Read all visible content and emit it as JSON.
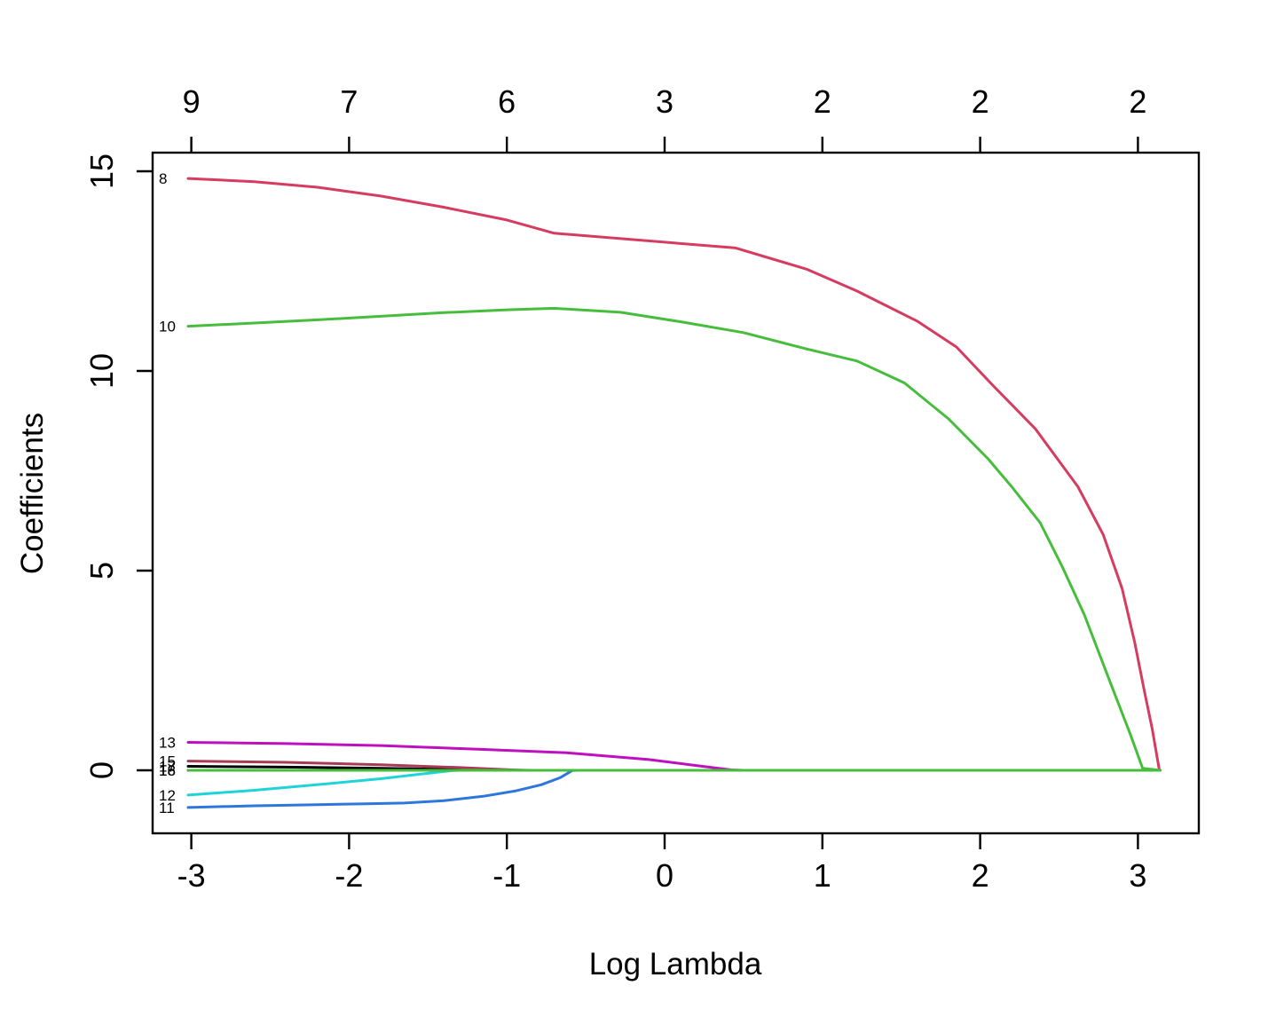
{
  "chart_data": {
    "type": "line",
    "title": "",
    "xlabel": "Log Lambda",
    "ylabel": "Coefficients",
    "x_ticks": [
      -3,
      -2,
      -1,
      0,
      1,
      2,
      3
    ],
    "y_ticks": [
      0,
      5,
      10,
      15
    ],
    "top_axis": {
      "description": "number of nonzero coefficients at each lambda",
      "tick_x": [
        -3,
        -2,
        -1,
        0,
        1,
        2,
        3
      ],
      "labels": [
        "9",
        "7",
        "6",
        "3",
        "2",
        "2",
        "2"
      ]
    },
    "xlim": [
      -3.25,
      3.39
    ],
    "ylim": [
      -1.58,
      15.47
    ],
    "grid": false,
    "legend": "none; each curve labeled at its left end with variable number",
    "series": [
      {
        "label": "18",
        "color": "#000000",
        "points": [
          [
            -3.02,
            0
          ],
          [
            3.14,
            0
          ]
        ]
      },
      {
        "label": "17",
        "color": "#000000",
        "points": [
          [
            -3.02,
            0.1
          ],
          [
            -2.4,
            0.08
          ],
          [
            -1.8,
            0.05
          ],
          [
            -1.4,
            0.025
          ],
          [
            -1.0,
            0.002
          ],
          [
            -0.95,
            0
          ],
          [
            3.14,
            0
          ]
        ]
      },
      {
        "label": "15",
        "color": "#a83a53",
        "points": [
          [
            -3.02,
            0.23
          ],
          [
            -2.4,
            0.2
          ],
          [
            -1.8,
            0.14
          ],
          [
            -1.3,
            0.07
          ],
          [
            -0.97,
            0.01
          ],
          [
            -0.85,
            0
          ],
          [
            3.14,
            0
          ]
        ]
      },
      {
        "label": "13",
        "color": "#bf10bf",
        "points": [
          [
            -3.02,
            0.7
          ],
          [
            -2.4,
            0.67
          ],
          [
            -1.8,
            0.62
          ],
          [
            -1.2,
            0.53
          ],
          [
            -0.62,
            0.44
          ],
          [
            -0.1,
            0.27
          ],
          [
            0.2,
            0.12
          ],
          [
            0.42,
            0.01
          ],
          [
            0.5,
            0
          ],
          [
            3.14,
            0
          ]
        ]
      },
      {
        "label": "12",
        "color": "#1ed4d8",
        "points": [
          [
            -3.02,
            -0.62
          ],
          [
            -2.6,
            -0.5
          ],
          [
            -2.12,
            -0.33
          ],
          [
            -1.8,
            -0.21
          ],
          [
            -1.6,
            -0.12
          ],
          [
            -1.34,
            -0.005
          ],
          [
            -1.3,
            0
          ],
          [
            3.14,
            0
          ]
        ]
      },
      {
        "label": "11",
        "color": "#2d77dc",
        "points": [
          [
            -3.02,
            -0.93
          ],
          [
            -2.6,
            -0.89
          ],
          [
            -2.2,
            -0.86
          ],
          [
            -1.9,
            -0.84
          ],
          [
            -1.65,
            -0.82
          ],
          [
            -1.4,
            -0.76
          ],
          [
            -1.15,
            -0.65
          ],
          [
            -0.95,
            -0.52
          ],
          [
            -0.78,
            -0.36
          ],
          [
            -0.66,
            -0.18
          ],
          [
            -0.585,
            -0.005
          ],
          [
            -0.55,
            0
          ],
          [
            3.14,
            0
          ]
        ]
      },
      {
        "label": "8",
        "color": "#d63b60",
        "points": [
          [
            -3.02,
            14.82
          ],
          [
            -2.6,
            14.74
          ],
          [
            -2.2,
            14.6
          ],
          [
            -1.8,
            14.38
          ],
          [
            -1.4,
            14.1
          ],
          [
            -1.0,
            13.78
          ],
          [
            -0.7,
            13.45
          ],
          [
            0.45,
            13.08
          ],
          [
            0.9,
            12.55
          ],
          [
            1.22,
            12.0
          ],
          [
            1.6,
            11.25
          ],
          [
            1.85,
            10.6
          ],
          [
            2.09,
            9.6
          ],
          [
            2.35,
            8.55
          ],
          [
            2.62,
            7.1
          ],
          [
            2.78,
            5.9
          ],
          [
            2.9,
            4.55
          ],
          [
            2.98,
            3.2
          ],
          [
            3.04,
            2.0
          ],
          [
            3.09,
            1.05
          ],
          [
            3.135,
            0.02
          ],
          [
            3.14,
            0
          ]
        ]
      },
      {
        "label": "10",
        "color": "#46bd3c",
        "points": [
          [
            -3.02,
            11.12
          ],
          [
            -2.6,
            11.2
          ],
          [
            -2.2,
            11.28
          ],
          [
            -1.8,
            11.37
          ],
          [
            -1.4,
            11.46
          ],
          [
            -1.0,
            11.53
          ],
          [
            -0.7,
            11.57
          ],
          [
            -0.28,
            11.47
          ],
          [
            0.12,
            11.22
          ],
          [
            0.5,
            10.96
          ],
          [
            0.9,
            10.55
          ],
          [
            1.22,
            10.25
          ],
          [
            1.52,
            9.7
          ],
          [
            1.8,
            8.8
          ],
          [
            2.05,
            7.8
          ],
          [
            2.2,
            7.1
          ],
          [
            2.38,
            6.2
          ],
          [
            2.52,
            5.1
          ],
          [
            2.66,
            3.9
          ],
          [
            2.82,
            2.25
          ],
          [
            2.95,
            0.92
          ],
          [
            3.03,
            0.05
          ],
          [
            3.14,
            0
          ]
        ]
      },
      {
        "label": "16",
        "color": "#46bd3c",
        "points": [
          [
            -3.02,
            0
          ],
          [
            3.14,
            0
          ]
        ]
      }
    ]
  },
  "figure": {
    "background": "#ffffff",
    "axis_color": "#000000"
  }
}
